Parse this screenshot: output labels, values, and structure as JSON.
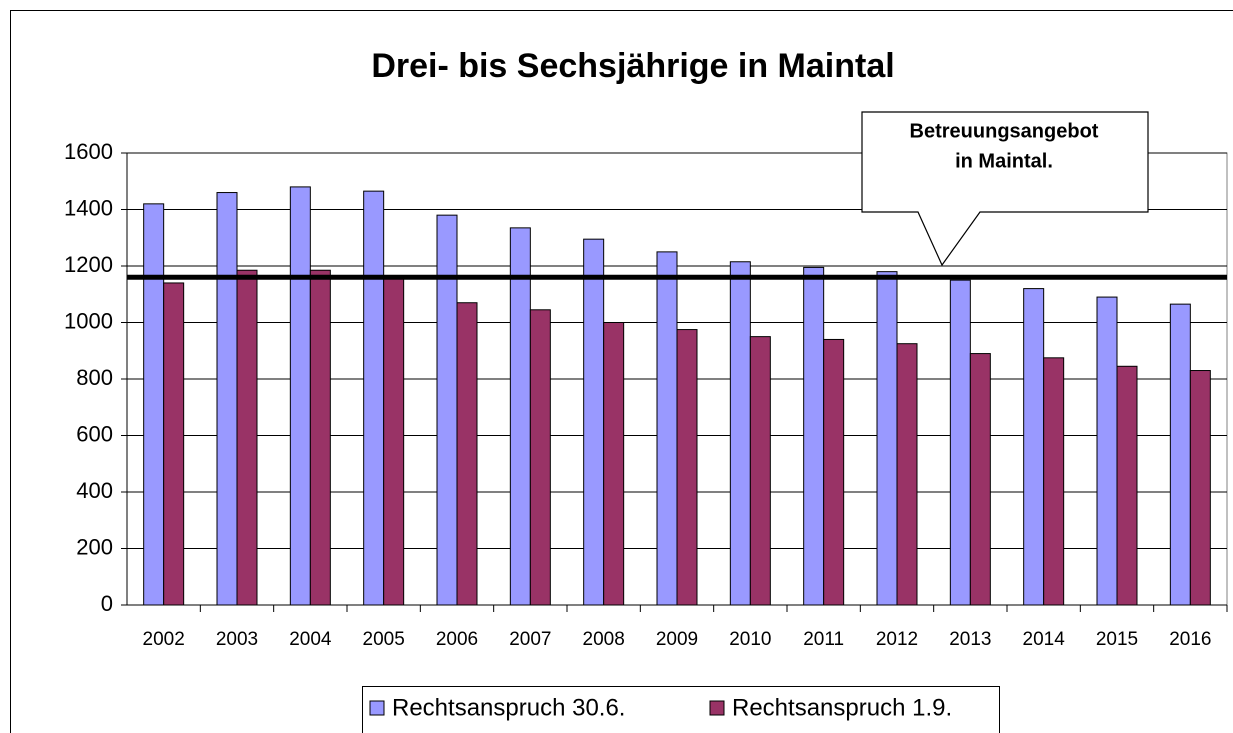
{
  "chart_data": {
    "type": "bar",
    "title": "Drei- bis Sechsjährige in Maintal",
    "categories": [
      "2002",
      "2003",
      "2004",
      "2005",
      "2006",
      "2007",
      "2008",
      "2009",
      "2010",
      "2011",
      "2012",
      "2013",
      "2014",
      "2015",
      "2016"
    ],
    "series": [
      {
        "name": "Rechtsanspruch 30.6.",
        "color": "#9999ff",
        "values": [
          1420,
          1460,
          1480,
          1465,
          1380,
          1335,
          1295,
          1250,
          1215,
          1195,
          1180,
          1150,
          1120,
          1090,
          1065
        ]
      },
      {
        "name": "Rechtsanspruch 1.9.",
        "color": "#993366",
        "values": [
          1140,
          1185,
          1185,
          1165,
          1070,
          1045,
          1000,
          975,
          950,
          940,
          925,
          890,
          875,
          845,
          830
        ]
      }
    ],
    "reference_line": 1160,
    "annotation": [
      "Betreuungsangebot",
      "in Maintal."
    ],
    "ylim": [
      0,
      1600
    ],
    "yticks": [
      0,
      200,
      400,
      600,
      800,
      1000,
      1200,
      1400,
      1600
    ],
    "grid": true,
    "legend": "bottom"
  }
}
